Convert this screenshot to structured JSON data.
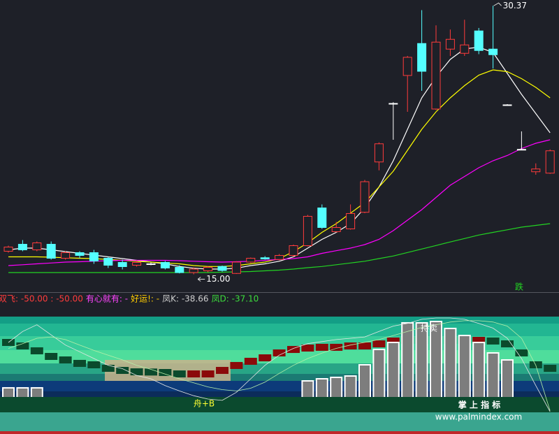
{
  "chart_data": [
    {
      "type": "candlestick",
      "open": [
        16.32,
        16.72,
        16.4,
        16.72,
        15.92,
        16.24,
        16.24,
        15.92,
        15.68,
        15.52,
        15.6,
        15.68,
        15.4,
        15.1,
        15.2,
        15.45,
        15.05,
        15.7,
        15.95,
        15.85,
        16.08,
        16.64,
        18.8,
        17.44,
        17.6,
        18.55,
        21.43,
        24.78,
        26.38,
        28.21,
        24.46,
        27.89,
        27.65,
        28.93,
        27.89,
        24.7,
        22.15,
        20.87,
        20.79
      ],
      "high": [
        16.64,
        16.96,
        16.88,
        16.88,
        16.32,
        16.32,
        16.4,
        16.0,
        15.84,
        15.76,
        15.68,
        15.76,
        15.52,
        15.4,
        15.48,
        15.5,
        15.75,
        15.96,
        16.04,
        16.16,
        16.7,
        18.4,
        19.0,
        18.0,
        19.0,
        20.4,
        22.55,
        24.85,
        27.5,
        30.12,
        29.25,
        29.01,
        29.57,
        29.1,
        30.37,
        24.74,
        23.18,
        21.35,
        22.15
      ],
      "low": [
        16.24,
        16.32,
        16.32,
        15.84,
        15.84,
        15.92,
        15.6,
        15.36,
        15.28,
        15.44,
        15.52,
        15.28,
        15.05,
        15.0,
        15.12,
        15.15,
        15.02,
        15.65,
        15.84,
        15.8,
        16.0,
        16.6,
        17.6,
        17.4,
        17.56,
        18.5,
        20.95,
        22.7,
        24.3,
        25.5,
        24.4,
        27.5,
        27.5,
        27.6,
        26.78,
        24.66,
        22.1,
        20.7,
        20.75
      ],
      "close": [
        16.56,
        16.4,
        16.8,
        15.92,
        16.24,
        16.08,
        15.76,
        15.52,
        15.44,
        15.68,
        15.6,
        15.36,
        15.1,
        15.3,
        15.4,
        15.22,
        15.7,
        15.92,
        15.88,
        16.08,
        16.64,
        18.32,
        17.68,
        17.68,
        18.48,
        20.3,
        22.47,
        24.78,
        27.42,
        26.62,
        28.29,
        28.45,
        28.13,
        27.81,
        27.57,
        24.7,
        22.15,
        21.03,
        22.07
      ],
      "up_color": "#ff3b3b",
      "down_color": "#54ffff",
      "doji_color": "#ffffff",
      "ylim": [
        14.1,
        30.7
      ],
      "series": [
        {
          "color": "#ffffff",
          "values": [
            16.4,
            16.5,
            16.5,
            16.4,
            16.3,
            16.2,
            16.1,
            16.0,
            15.9,
            15.8,
            15.7,
            15.6,
            15.45,
            15.35,
            15.3,
            15.3,
            15.35,
            15.5,
            15.6,
            15.75,
            16.0,
            16.5,
            17.0,
            17.4,
            17.9,
            18.8,
            20.0,
            21.5,
            23.3,
            25.1,
            26.3,
            27.3,
            27.9,
            28.0,
            27.7,
            26.5,
            25.3,
            24.2,
            23.1
          ]
        },
        {
          "color": "#ffff00",
          "values": [
            16.0,
            16.0,
            16.0,
            15.98,
            15.95,
            15.92,
            15.9,
            15.85,
            15.8,
            15.75,
            15.7,
            15.65,
            15.6,
            15.5,
            15.45,
            15.45,
            15.5,
            15.6,
            15.7,
            15.9,
            16.3,
            16.8,
            17.4,
            17.9,
            18.5,
            19.1,
            20.0,
            20.9,
            22.1,
            23.3,
            24.3,
            25.1,
            25.8,
            26.4,
            26.7,
            26.6,
            26.2,
            25.7,
            25.1
          ]
        },
        {
          "color": "#ff00ff",
          "values": [
            15.5,
            15.55,
            15.6,
            15.65,
            15.7,
            15.72,
            15.75,
            15.78,
            15.8,
            15.8,
            15.8,
            15.8,
            15.78,
            15.75,
            15.72,
            15.7,
            15.72,
            15.75,
            15.8,
            15.85,
            15.9,
            16.0,
            16.2,
            16.35,
            16.5,
            16.7,
            17.0,
            17.5,
            18.1,
            18.7,
            19.4,
            20.1,
            20.6,
            21.1,
            21.5,
            21.8,
            22.2,
            22.5,
            22.7
          ]
        },
        {
          "color": "#22d422",
          "values": [
            15.1,
            15.1,
            15.1,
            15.1,
            15.1,
            15.1,
            15.1,
            15.1,
            15.1,
            15.1,
            15.1,
            15.1,
            15.1,
            15.1,
            15.1,
            15.12,
            15.14,
            15.16,
            15.2,
            15.24,
            15.3,
            15.38,
            15.45,
            15.55,
            15.65,
            15.75,
            15.9,
            16.05,
            16.25,
            16.45,
            16.65,
            16.85,
            17.05,
            17.25,
            17.4,
            17.55,
            17.7,
            17.8,
            17.9
          ]
        }
      ],
      "annotations": [
        {
          "text": "30.37",
          "value": 30.37
        },
        {
          "text": "15.00",
          "value": 15.0
        }
      ],
      "signal": {
        "text": "跌",
        "color": "#22d422"
      }
    },
    {
      "type": "indicator",
      "legend": [
        {
          "text": "双飞: -50.00 : -50.00",
          "color": "#ff3b3b"
        },
        {
          "text": "有心就有: -",
          "color": "#ff44ff"
        },
        {
          "text": "好运!: -",
          "color": "#ffcc00"
        },
        {
          "text": "凤K: -38.66",
          "color": "#cfcfcf"
        },
        {
          "text": "凤D: -37.10",
          "color": "#3cdc3c"
        }
      ],
      "ylim": [
        -50,
        100
      ],
      "blocks": [
        63.8,
        58.6,
        51.4,
        43.1,
        37.9,
        32.8,
        30.7,
        25.5,
        22.4,
        20.3,
        20.0,
        19.3,
        17.2,
        17.2,
        17.2,
        22.4,
        29.7,
        35.9,
        41.0,
        48.3,
        53.4,
        55.5,
        56.6,
        56.6,
        58.6,
        58.6,
        61.7,
        65.9,
        66.9,
        66.9,
        66.9,
        66.9,
        66.9,
        66.9,
        65.9,
        61.7,
        48.3,
        30.7,
        25.5
      ],
      "up_color": "#8b0a0a",
      "down_color": "#0b4a2c",
      "bars": [
        -3.4,
        -3.4,
        -3.4,
        null,
        null,
        null,
        null,
        null,
        null,
        null,
        null,
        null,
        null,
        null,
        null,
        null,
        null,
        null,
        null,
        null,
        null,
        6.9,
        10.0,
        12.1,
        14.1,
        30.7,
        53.4,
        63.8,
        92.8,
        92.8,
        94.8,
        84.5,
        74.1,
        63.8,
        48.3,
        37.9,
        null,
        null,
        null
      ],
      "bar_color": "#7d7d7d",
      "series": [
        {
          "color": "#e6e6e6",
          "values": [
            63.8,
            80,
            90,
            75,
            60,
            50,
            40,
            30,
            25,
            15,
            10,
            0,
            -8,
            -15,
            -20,
            -22,
            -10,
            10,
            30,
            45,
            55,
            62,
            65,
            68,
            70,
            72,
            80,
            88,
            92,
            98,
            100,
            100,
            98,
            92,
            85,
            70,
            40,
            0,
            -38.66
          ]
        },
        {
          "color": "#b6efa8",
          "values": [
            55,
            62,
            70,
            72,
            68,
            60,
            52,
            45,
            38,
            30,
            24,
            17,
            10,
            4,
            -2,
            -6,
            -8,
            -4,
            5,
            18,
            30,
            40,
            48,
            55,
            60,
            64,
            68,
            74,
            80,
            86,
            90,
            94,
            96,
            96,
            94,
            88,
            70,
            30,
            -37.1
          ]
        }
      ],
      "texts": [
        {
          "text": "持卖",
          "color": "#ffffff"
        },
        {
          "text": "舟+B",
          "color": "#ffff33"
        }
      ]
    }
  ],
  "watermark": {
    "title": "掌 上 指 标",
    "url": "www.palmindex.com"
  }
}
